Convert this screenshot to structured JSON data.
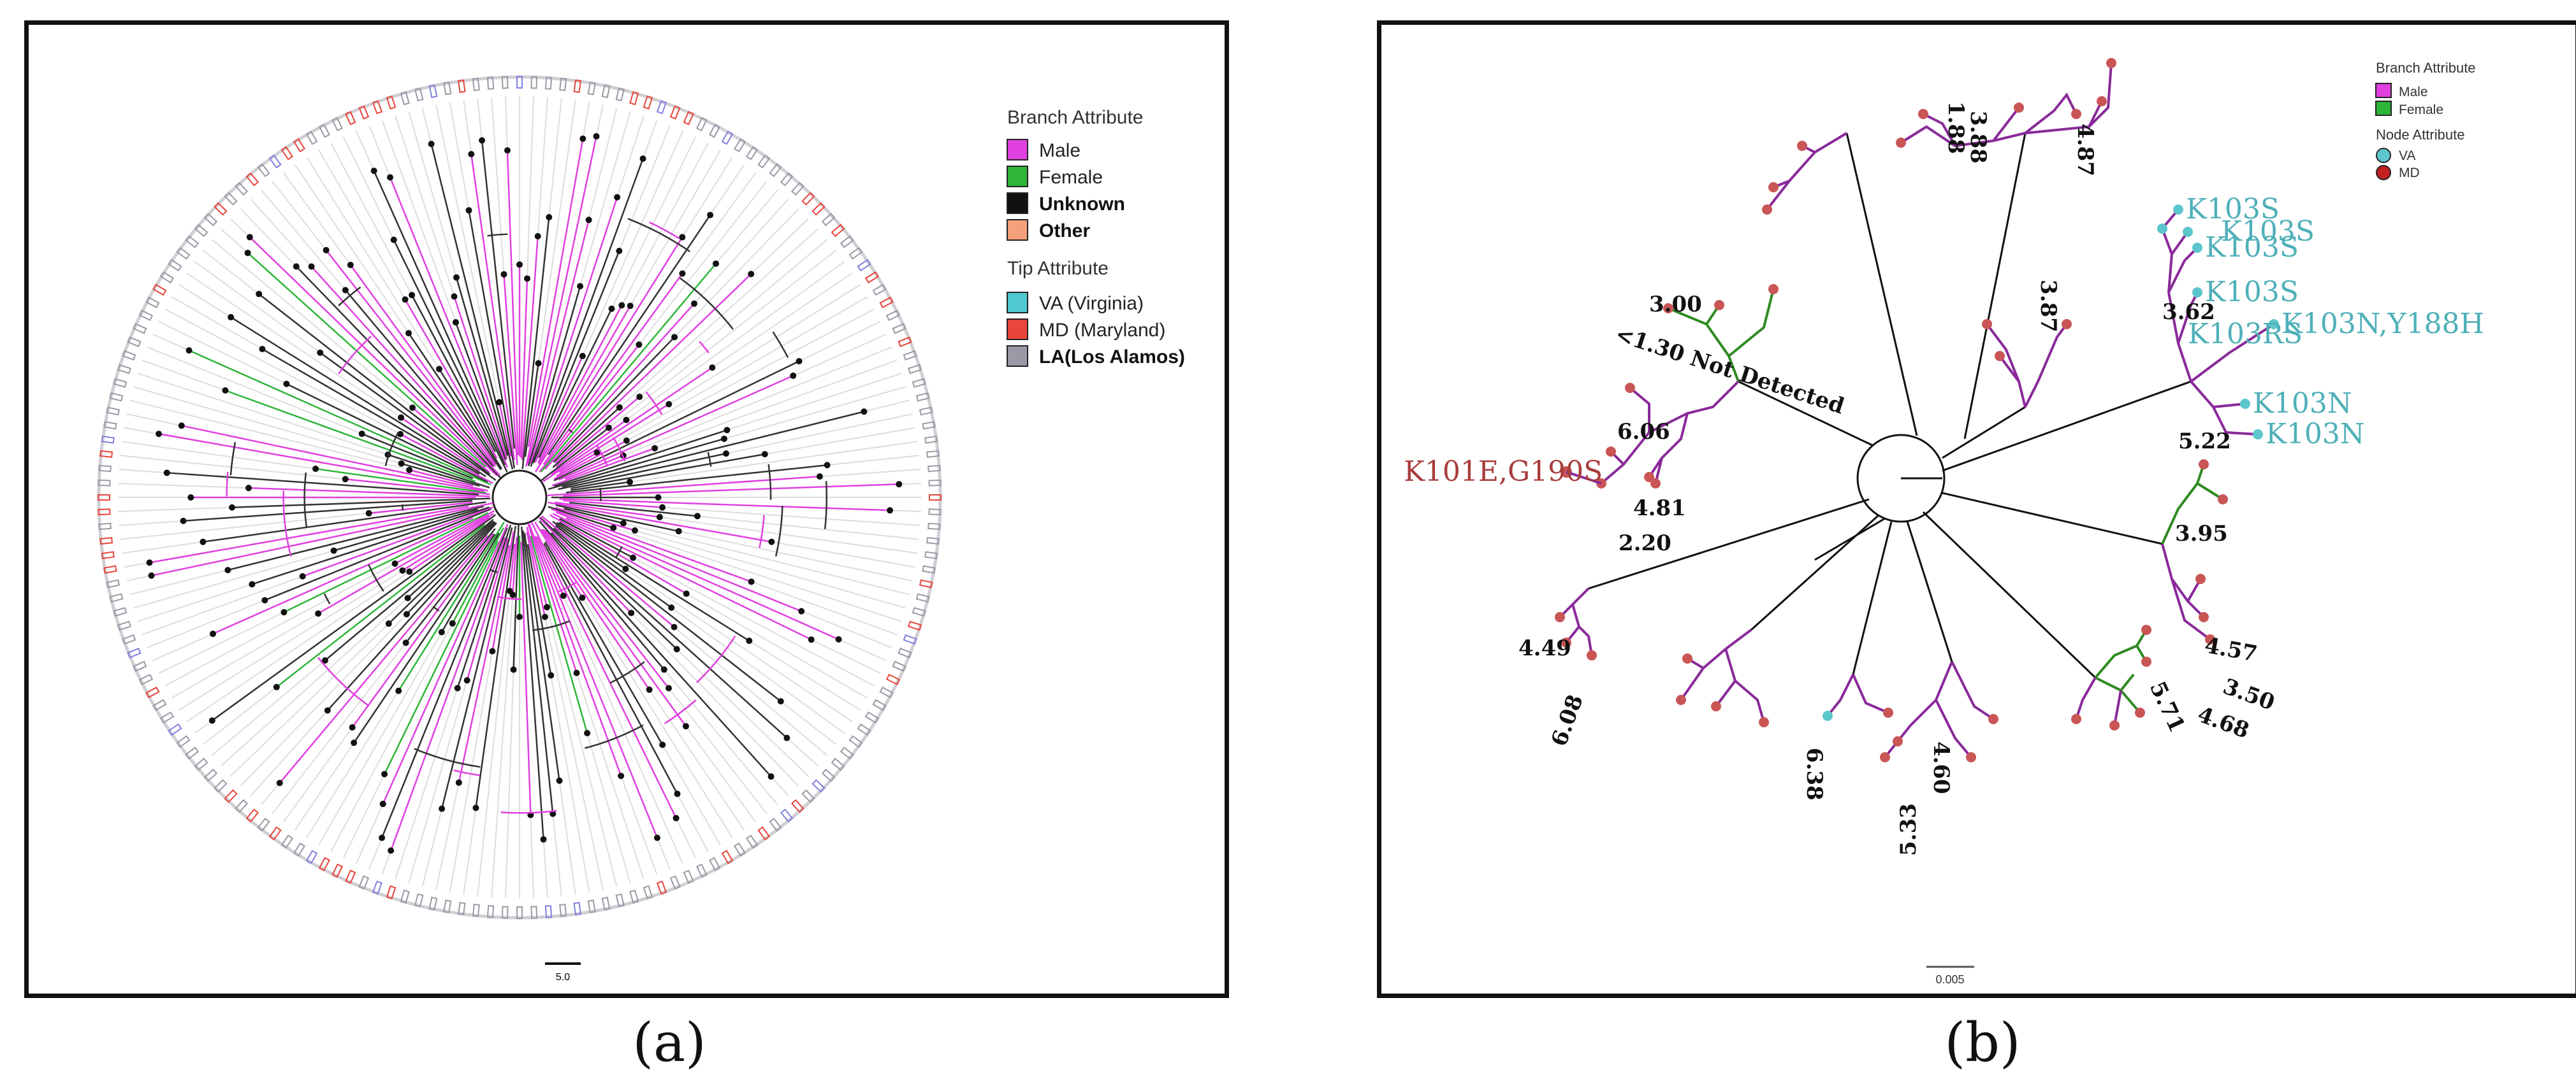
{
  "colors": {
    "male": "#e040e0",
    "female": "#2fb53a",
    "unknown": "#111111",
    "other": "#f4a07a",
    "va": "#4fc8d0",
    "md": "#e8453c",
    "la": "#9a9aa6",
    "b_male": "#8a2a9a",
    "b_female": "#2f8a22",
    "b_va": "#5cc6cc",
    "b_md": "#c95555",
    "mut_teal": "#4fb0b8",
    "mut_red": "#a83c3c"
  },
  "panel_a": {
    "caption": "(a)",
    "scale_label": "5.0",
    "legend": {
      "branch_title": "Branch Attribute",
      "branch_items": [
        {
          "label": "Male",
          "color_key": "male",
          "bold": false
        },
        {
          "label": "Female",
          "color_key": "female",
          "bold": false
        },
        {
          "label": "Unknown",
          "color_key": "unknown",
          "bold": true
        },
        {
          "label": "Other",
          "color_key": "other",
          "bold": true
        }
      ],
      "tip_title": "Tip Attribute",
      "tip_items": [
        {
          "label": "VA (Virginia)",
          "color_key": "va",
          "bold": false
        },
        {
          "label": "MD (Maryland)",
          "color_key": "md",
          "bold": false
        },
        {
          "label": "LA(Los Alamos)",
          "color_key": "la",
          "bold": true
        }
      ]
    }
  },
  "panel_b": {
    "caption": "(b)",
    "scale_label": "0.005",
    "legend": {
      "branch_title": "Branch Attribute",
      "branch_items": [
        {
          "label": "Male",
          "color_key": "b_male"
        },
        {
          "label": "Female",
          "color_key": "b_female"
        }
      ],
      "node_title": "Node Attribute",
      "node_items": [
        {
          "label": "VA",
          "color_key": "b_va"
        },
        {
          "label": "MD",
          "color_key": "b_md"
        }
      ]
    },
    "mutations": [
      "K103S",
      "K103S",
      "K103S",
      "K103S",
      "K103RS",
      "K103N,Y188H",
      "K103N",
      "K103N",
      "K101E,G190S"
    ],
    "node_values": [
      "1.88",
      "3.88",
      "4.87",
      "3.87",
      "3.62",
      "3.00",
      "<1.30 Not Detected",
      "6.06",
      "4.81",
      "2.20",
      "5.22",
      "3.95",
      "4.49",
      "6.08",
      "5.33",
      "6.38",
      "4.60",
      "5.71",
      "4.57",
      "3.50",
      "4.68"
    ]
  }
}
